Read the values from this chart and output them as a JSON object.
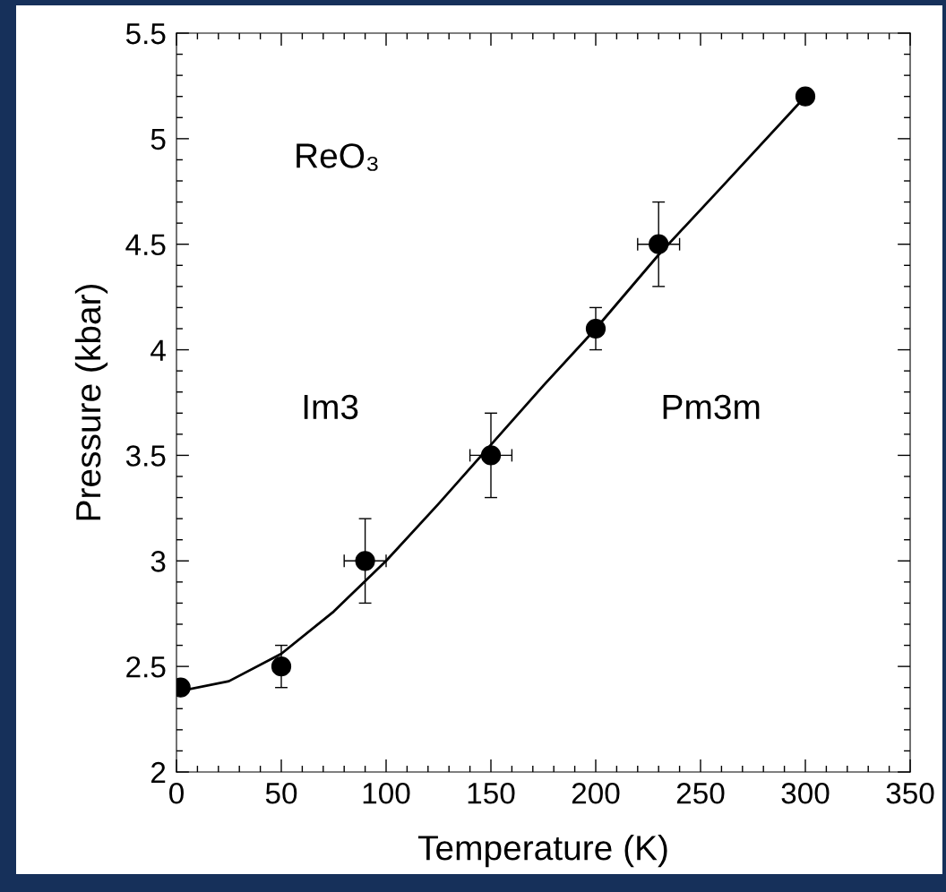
{
  "chart_data": {
    "type": "scatter",
    "xlabel": "Temperature (K)",
    "ylabel": "Pressure (kbar)",
    "xlim": [
      0,
      350
    ],
    "xticks": [
      0,
      50,
      100,
      150,
      200,
      250,
      300,
      350
    ],
    "ylim": [
      2,
      5.5
    ],
    "yticks": [
      2,
      2.5,
      3,
      3.5,
      4,
      4.5,
      5,
      5.5
    ],
    "grid": false,
    "legend": false,
    "marker": "circle",
    "series": [
      {
        "color": "#000000",
        "x": [
          2,
          50,
          90,
          150,
          200,
          230,
          300
        ],
        "values": [
          2.4,
          2.5,
          3.0,
          3.5,
          4.1,
          4.5,
          5.2
        ],
        "errors": [
          null,
          0.1,
          0.2,
          0.2,
          0.1,
          0.2,
          null
        ],
        "xerrors": [
          null,
          null,
          10,
          10,
          null,
          10,
          null
        ]
      },
      {
        "type": "line",
        "color": "#000000",
        "line_style": "solid",
        "marker": "none",
        "x": [
          0,
          25,
          50,
          75,
          100,
          125,
          150,
          175,
          200,
          230,
          260,
          300
        ],
        "values": [
          2.38,
          2.43,
          2.56,
          2.76,
          3.0,
          3.27,
          3.55,
          3.83,
          4.1,
          4.45,
          4.77,
          5.2
        ]
      }
    ],
    "annotations": [
      "ReO₃",
      "Im3",
      "Pm3m"
    ]
  }
}
